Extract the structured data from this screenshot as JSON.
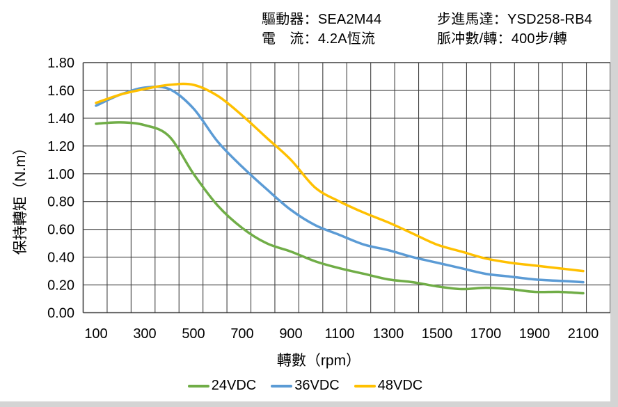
{
  "header": {
    "driver_label": "驅動器：",
    "driver_value": "SEA2M44",
    "current_label": "電　流：",
    "current_value": "4.2A恆流",
    "motor_label": "步進馬達：",
    "motor_value": "YSD258-RB4",
    "pulses_label": "脈冲數/轉：",
    "pulses_value": "400步/轉"
  },
  "chart_data": {
    "type": "line",
    "title": "",
    "xlabel": "轉數（rpm）",
    "ylabel": "保持轉矩（N.m）",
    "categories": [
      100,
      200,
      300,
      400,
      500,
      600,
      700,
      800,
      900,
      1000,
      1100,
      1200,
      1300,
      1400,
      1500,
      1600,
      1700,
      1800,
      1900,
      2000,
      2100
    ],
    "x_tick_labels": [
      "100",
      "300",
      "500",
      "700",
      "900",
      "1100",
      "1300",
      "1500",
      "1700",
      "1900",
      "2100"
    ],
    "y_tick_labels": [
      "0.00",
      "0.20",
      "0.40",
      "0.60",
      "0.80",
      "1.00",
      "1.20",
      "1.40",
      "1.60",
      "1.80"
    ],
    "ylim": [
      0,
      1.8
    ],
    "y_tick_step": 0.2,
    "grid": true,
    "grid_color": "#3f3f3f",
    "legend_position": "bottom",
    "series": [
      {
        "name": "24VDC",
        "color": "#70AD47",
        "values": [
          1.36,
          1.37,
          1.35,
          1.27,
          1.0,
          0.77,
          0.61,
          0.5,
          0.44,
          0.37,
          0.32,
          0.28,
          0.24,
          0.22,
          0.19,
          0.17,
          0.18,
          0.17,
          0.15,
          0.15,
          0.14
        ]
      },
      {
        "name": "36VDC",
        "color": "#5B9BD5",
        "values": [
          1.49,
          1.57,
          1.62,
          1.61,
          1.47,
          1.23,
          1.05,
          0.89,
          0.74,
          0.63,
          0.56,
          0.49,
          0.45,
          0.4,
          0.36,
          0.32,
          0.28,
          0.26,
          0.24,
          0.23,
          0.22
        ]
      },
      {
        "name": "48VDC",
        "color": "#FFC000",
        "values": [
          1.51,
          1.57,
          1.61,
          1.64,
          1.64,
          1.56,
          1.42,
          1.26,
          1.1,
          0.9,
          0.8,
          0.72,
          0.65,
          0.57,
          0.49,
          0.44,
          0.39,
          0.36,
          0.34,
          0.32,
          0.3
        ]
      }
    ]
  }
}
